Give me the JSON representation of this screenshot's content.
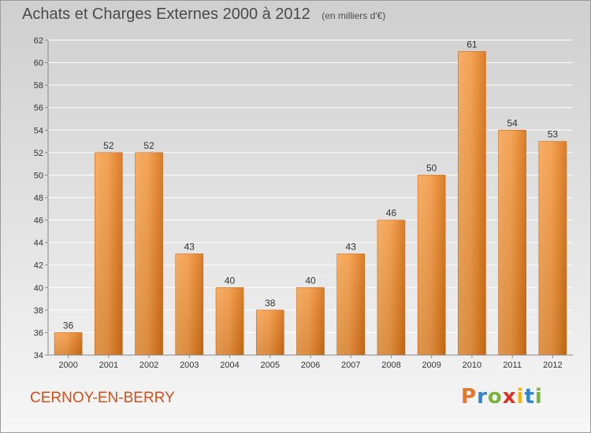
{
  "header": {
    "title": "Achats et Charges Externes 2000 à 2012",
    "unit": "(en milliers d'€)"
  },
  "footer": {
    "commune": "CERNOY-EN-BERRY",
    "logo": [
      "P",
      "r",
      "o",
      "x",
      "i",
      "t",
      "i"
    ],
    "logo_colors": [
      "#e8732a",
      "#2f86c8",
      "#7ab43c",
      "#d9322b",
      "#f2b705",
      "#2f86c8",
      "#7ab43c"
    ]
  },
  "colors": {
    "bar_light": "#f6a555",
    "bar_dark": "#d66f12",
    "grid": "#ffffff",
    "axis": "#8a8a8a",
    "commune": "#d2501c"
  },
  "chart_data": {
    "type": "bar",
    "categories": [
      "2000",
      "2001",
      "2002",
      "2003",
      "2004",
      "2005",
      "2006",
      "2007",
      "2008",
      "2009",
      "2010",
      "2011",
      "2012"
    ],
    "values": [
      36,
      52,
      52,
      43,
      40,
      38,
      40,
      43,
      46,
      50,
      61,
      54,
      53
    ],
    "ylim": [
      34,
      62
    ],
    "yticks": [
      34,
      36,
      38,
      40,
      42,
      44,
      46,
      48,
      50,
      52,
      54,
      56,
      58,
      60,
      62
    ],
    "grid": true
  }
}
